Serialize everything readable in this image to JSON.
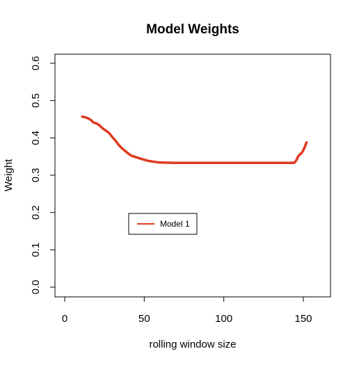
{
  "chart_data": {
    "type": "line",
    "title": "Model Weights",
    "xlabel": "rolling window size",
    "ylabel": "Weight",
    "xlim": [
      0,
      152
    ],
    "ylim": [
      0.0,
      0.6
    ],
    "x_ticks": [
      "0",
      "50",
      "100",
      "150"
    ],
    "y_ticks": [
      "0.0",
      "0.1",
      "0.2",
      "0.3",
      "0.4",
      "0.5",
      "0.6"
    ],
    "grid": false,
    "legend": {
      "position": "center-left",
      "entries": [
        "Model 1"
      ]
    },
    "series": [
      {
        "name": "Model 1",
        "color": "#e0391f",
        "x": [
          11,
          13,
          15,
          17,
          18,
          20,
          22,
          24,
          26,
          28,
          30,
          32,
          34,
          36,
          38,
          40,
          42,
          45,
          48,
          52,
          56,
          60,
          70,
          80,
          90,
          100,
          110,
          120,
          130,
          140,
          144,
          145,
          146,
          147,
          148,
          149,
          150,
          151,
          152
        ],
        "y": [
          0.457,
          0.455,
          0.452,
          0.446,
          0.441,
          0.439,
          0.433,
          0.425,
          0.419,
          0.413,
          0.402,
          0.392,
          0.381,
          0.372,
          0.365,
          0.358,
          0.352,
          0.348,
          0.344,
          0.339,
          0.336,
          0.334,
          0.333,
          0.333,
          0.333,
          0.333,
          0.333,
          0.333,
          0.333,
          0.333,
          0.333,
          0.336,
          0.344,
          0.352,
          0.356,
          0.36,
          0.367,
          0.377,
          0.388
        ]
      }
    ]
  }
}
